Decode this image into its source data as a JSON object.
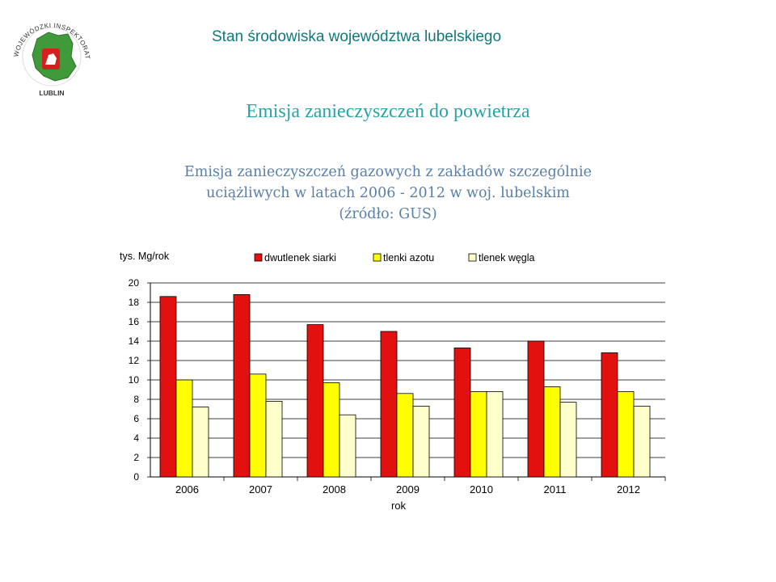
{
  "header": {
    "title": "Stan środowiska województwa lubelskiego"
  },
  "logo": {
    "ring_text": "WOJEWÓDZKI INSPEKTORAT OCHRONY ŚRODOWISKA",
    "city": "LUBLIN",
    "icon": "voivodeship-map-logo"
  },
  "slide": {
    "title": "Emisja zanieczyszczeń do powietrza",
    "subtitle_line1": "Emisja zanieczyszczeń gazowych z zakładów szczególnie",
    "subtitle_line2": "uciążliwych w latach 2006 - 2012 w woj. lubelskim",
    "subtitle_line3": "(źródło: GUS)"
  },
  "chart_data": {
    "type": "bar",
    "title": "",
    "ylabel": "tys. Mg/rok",
    "xlabel": "rok",
    "categories": [
      "2006",
      "2007",
      "2008",
      "2009",
      "2010",
      "2011",
      "2012"
    ],
    "ylim": [
      0,
      20
    ],
    "yticks": [
      0,
      2,
      4,
      6,
      8,
      10,
      12,
      14,
      16,
      18,
      20
    ],
    "grid": true,
    "legend_position": "top",
    "series": [
      {
        "name": "dwutlenek siarki",
        "color": "#e31010",
        "values": [
          18.6,
          18.8,
          15.7,
          15.0,
          13.3,
          14.0,
          12.8
        ]
      },
      {
        "name": "tlenki azotu",
        "color": "#ffff00",
        "values": [
          10.0,
          10.6,
          9.7,
          8.6,
          8.8,
          9.3,
          8.8
        ]
      },
      {
        "name": "tlenek węgla",
        "color": "#ffffcc",
        "values": [
          7.2,
          7.8,
          6.4,
          7.3,
          8.8,
          7.7,
          7.3
        ]
      }
    ]
  }
}
